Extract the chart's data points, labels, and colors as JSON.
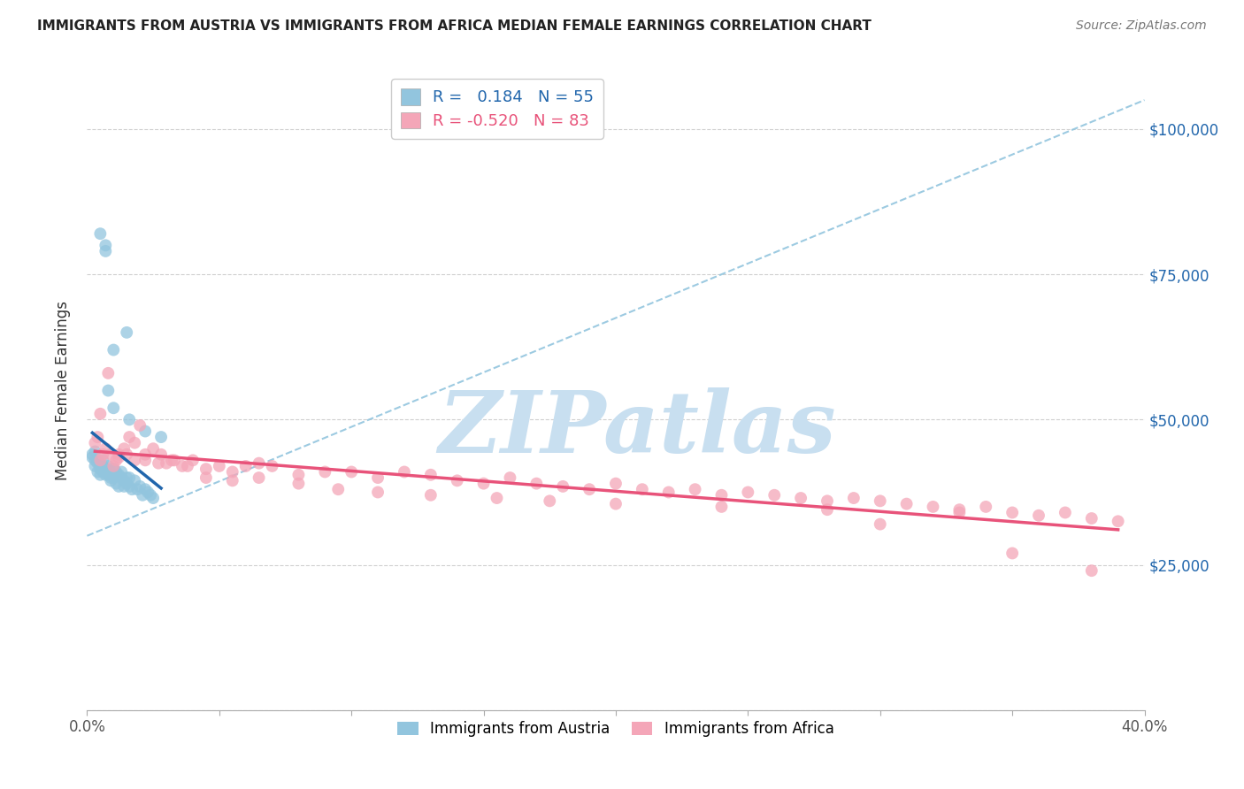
{
  "title": "IMMIGRANTS FROM AUSTRIA VS IMMIGRANTS FROM AFRICA MEDIAN FEMALE EARNINGS CORRELATION CHART",
  "source": "Source: ZipAtlas.com",
  "ylabel": "Median Female Earnings",
  "austria_R": 0.184,
  "austria_N": 55,
  "africa_R": -0.52,
  "africa_N": 83,
  "xlim": [
    0.0,
    0.4
  ],
  "ylim": [
    0,
    110000
  ],
  "yticks": [
    0,
    25000,
    50000,
    75000,
    100000
  ],
  "ytick_labels_right": [
    "",
    "$25,000",
    "$50,000",
    "$75,000",
    "$100,000"
  ],
  "austria_color": "#92c5de",
  "africa_color": "#f4a6b8",
  "austria_line_color": "#2166ac",
  "africa_line_color": "#e8537a",
  "trendline_dashed_color": "#92c5de",
  "watermark_text": "ZIPatlas",
  "watermark_color": "#c8dff0",
  "legend_label_austria": "Immigrants from Austria",
  "legend_label_africa": "Immigrants from Africa",
  "austria_scatter_x": [
    0.005,
    0.007,
    0.007,
    0.002,
    0.002,
    0.003,
    0.003,
    0.003,
    0.004,
    0.004,
    0.004,
    0.005,
    0.005,
    0.005,
    0.006,
    0.006,
    0.006,
    0.007,
    0.007,
    0.008,
    0.008,
    0.008,
    0.009,
    0.009,
    0.009,
    0.01,
    0.01,
    0.011,
    0.011,
    0.012,
    0.012,
    0.013,
    0.013,
    0.014,
    0.014,
    0.015,
    0.015,
    0.016,
    0.016,
    0.017,
    0.018,
    0.019,
    0.02,
    0.021,
    0.022,
    0.023,
    0.024,
    0.025,
    0.01,
    0.015,
    0.008,
    0.01,
    0.016,
    0.022,
    0.028
  ],
  "austria_scatter_y": [
    82000,
    80000,
    79000,
    44000,
    43500,
    44500,
    43000,
    42000,
    43000,
    42500,
    41000,
    42500,
    41500,
    40500,
    43000,
    42000,
    41000,
    41500,
    40500,
    41000,
    42000,
    40500,
    41000,
    40000,
    39500,
    41500,
    40000,
    41000,
    39000,
    40500,
    38500,
    41000,
    40000,
    39500,
    38500,
    40000,
    39000,
    38500,
    40000,
    38000,
    39500,
    38000,
    38500,
    37000,
    38000,
    37500,
    37000,
    36500,
    62000,
    65000,
    55000,
    52000,
    50000,
    48000,
    47000
  ],
  "africa_scatter_x": [
    0.003,
    0.004,
    0.005,
    0.006,
    0.007,
    0.008,
    0.009,
    0.01,
    0.011,
    0.012,
    0.014,
    0.016,
    0.018,
    0.02,
    0.022,
    0.025,
    0.028,
    0.03,
    0.033,
    0.036,
    0.04,
    0.045,
    0.05,
    0.055,
    0.06,
    0.065,
    0.07,
    0.08,
    0.09,
    0.1,
    0.11,
    0.12,
    0.13,
    0.14,
    0.15,
    0.16,
    0.17,
    0.18,
    0.19,
    0.2,
    0.21,
    0.22,
    0.23,
    0.24,
    0.25,
    0.26,
    0.27,
    0.28,
    0.29,
    0.3,
    0.31,
    0.32,
    0.33,
    0.34,
    0.35,
    0.36,
    0.37,
    0.38,
    0.39,
    0.012,
    0.015,
    0.018,
    0.022,
    0.027,
    0.032,
    0.038,
    0.045,
    0.055,
    0.065,
    0.08,
    0.095,
    0.11,
    0.13,
    0.155,
    0.175,
    0.2,
    0.24,
    0.28,
    0.33,
    0.005,
    0.35,
    0.38,
    0.3
  ],
  "africa_scatter_y": [
    46000,
    47000,
    43000,
    44000,
    45000,
    58000,
    44000,
    42000,
    43000,
    44000,
    45000,
    47000,
    46000,
    49000,
    43000,
    45000,
    44000,
    42500,
    43000,
    42000,
    43000,
    41500,
    42000,
    41000,
    42000,
    42500,
    42000,
    40500,
    41000,
    41000,
    40000,
    41000,
    40500,
    39500,
    39000,
    40000,
    39000,
    38500,
    38000,
    39000,
    38000,
    37500,
    38000,
    37000,
    37500,
    37000,
    36500,
    36000,
    36500,
    36000,
    35500,
    35000,
    34500,
    35000,
    34000,
    33500,
    34000,
    33000,
    32500,
    43500,
    44000,
    43000,
    44000,
    42500,
    43000,
    42000,
    40000,
    39500,
    40000,
    39000,
    38000,
    37500,
    37000,
    36500,
    36000,
    35500,
    35000,
    34500,
    34000,
    51000,
    27000,
    24000,
    32000
  ]
}
